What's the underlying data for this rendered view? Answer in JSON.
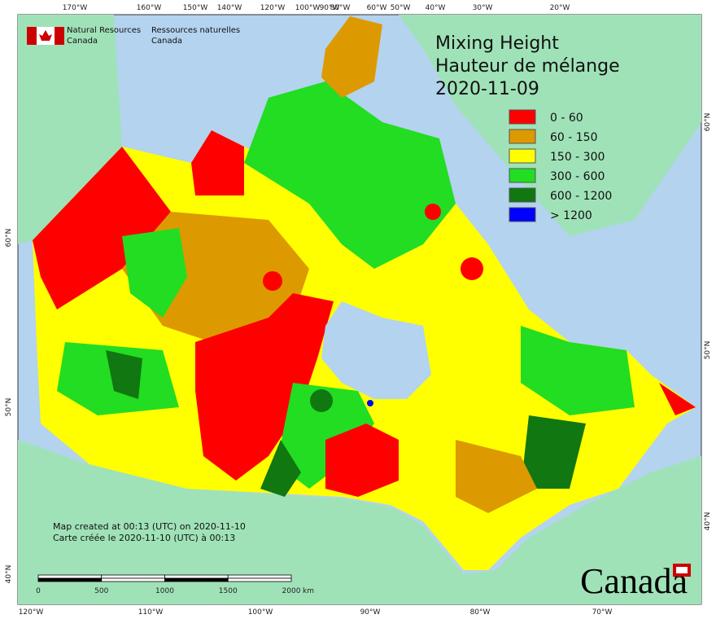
{
  "header": {
    "department_en": [
      "Natural Resources",
      "Canada"
    ],
    "department_fr": [
      "Ressources naturelles",
      "Canada"
    ]
  },
  "title": {
    "lines": [
      "Mixing Height",
      "Hauteur de mélange",
      "2020-11-09"
    ]
  },
  "legend": [
    {
      "label": "0 - 60",
      "color": "#ff0000"
    },
    {
      "label": "60 - 150",
      "color": "#dd9900"
    },
    {
      "label": "150 - 300",
      "color": "#ffff00"
    },
    {
      "label": "300 - 600",
      "color": "#22dd22"
    },
    {
      "label": "600 - 1200",
      "color": "#117711"
    },
    {
      "label": "> 1200",
      "color": "#0000ff"
    }
  ],
  "graticule": {
    "top": [
      "170°W",
      "160°W",
      "150°W",
      "140°W",
      "120°W",
      "100°W",
      "90°W",
      "80°W",
      "60°W",
      "50°W",
      "40°W",
      "30°W",
      "20°W"
    ],
    "bottom": [
      "120°W",
      "110°W",
      "100°W",
      "90°W",
      "80°W",
      "70°W"
    ],
    "left": [
      "60°N",
      "50°N",
      "40°N"
    ],
    "right": [
      "60°N",
      "50°N",
      "40°N"
    ]
  },
  "notes": [
    "Map created at 00:13 (UTC) on 2020-11-10",
    "Carte créée le 2020-11-10 (UTC) à 00:13"
  ],
  "scale_bar": {
    "ticks": [
      0,
      500,
      1000,
      1500,
      2000
    ],
    "unit": "km"
  },
  "wordmark": "Canada"
}
